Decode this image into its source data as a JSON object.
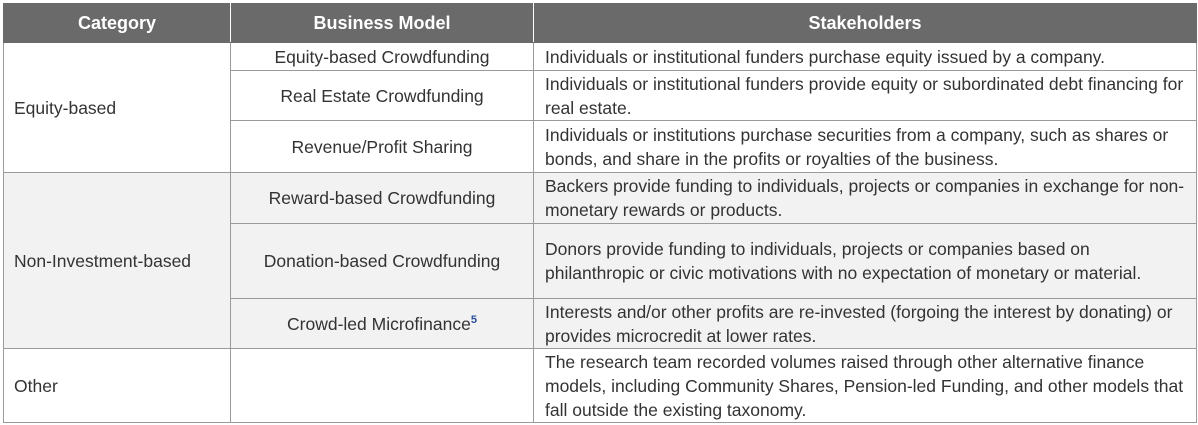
{
  "table": {
    "headers": [
      "Category",
      "Business Model",
      "Stakeholders"
    ],
    "groups": [
      {
        "category": "Equity-based",
        "rows": [
          {
            "model": "Equity-based Crowdfunding",
            "stakeholders": "Individuals or institutional funders purchase equity issued by a company."
          },
          {
            "model": "Real Estate Crowdfunding",
            "stakeholders": "Individuals or institutional funders provide equity or subordinated debt financing for real estate."
          },
          {
            "model": "Revenue/Profit Sharing",
            "stakeholders": "Individuals or institutions purchase securities from a company, such as shares or bonds, and share in the profits or royalties of the business."
          }
        ]
      },
      {
        "category": "Non-Investment-based",
        "rows": [
          {
            "model": "Reward-based Crowdfunding",
            "stakeholders": "Backers provide funding to individuals, projects or companies in exchange for non-monetary rewards or products."
          },
          {
            "model": "Donation-based Crowdfunding",
            "stakeholders": "Donors provide funding to individuals, projects or companies based on philanthropic or civic motivations with no expectation of monetary or material."
          },
          {
            "model": "Crowd-led Microfinance",
            "footnote": "5",
            "stakeholders": "Interests and/or other profits are re-invested (forgoing the interest by donating) or provides microcredit at lower rates."
          }
        ]
      },
      {
        "category": "Other",
        "rows": [
          {
            "model": "",
            "stakeholders": "The research team recorded volumes raised through other alternative finance models, including Community Shares, Pension-led Funding, and other models that fall outside the existing taxonomy."
          }
        ]
      }
    ]
  }
}
